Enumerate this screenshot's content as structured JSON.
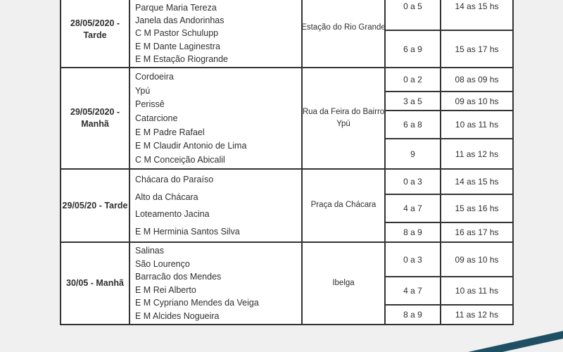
{
  "colors": {
    "page_background": "#f0f0f0",
    "table_background": "#ffffff",
    "border": "#333333",
    "text": "#2f2f2f",
    "ribbon": "#1e4f63"
  },
  "schedule_table": {
    "blocks": [
      {
        "date_lines": [
          "28/05/2020 -",
          "Tarde"
        ],
        "locations": [
          "Parque Maria Tereza",
          "Janela das Andorinhas",
          "C M Pastor Schulupp",
          "E M Dante Laginestra",
          "E M Estação Riogrande"
        ],
        "meeting_point_lines": [
          "Estação do Rio Grande"
        ],
        "slots": [
          {
            "ages": "0 a 5",
            "time": "14 as 15 hs"
          },
          {
            "ages": "6 a 9",
            "time": "15 as 17 hs"
          }
        ]
      },
      {
        "date_lines": [
          "29/05/2020 -",
          "Manhã"
        ],
        "locations": [
          "Cordoeira",
          "Ypú",
          "Perissê",
          "Catarcione",
          "E M Padre Rafael",
          "E M Claudir Antonio de Lima",
          "C M Conceição Abicalil"
        ],
        "meeting_point_lines": [
          "Rua da Feira do Bairro",
          "Ypú"
        ],
        "slots": [
          {
            "ages": "0 a 2",
            "time": "08 as 09 hs"
          },
          {
            "ages": "3 a 5",
            "time": "09 as 10 hs"
          },
          {
            "ages": "6 a 8",
            "time": "10 as 11 hs"
          },
          {
            "ages": "9",
            "time": "11 as 12 hs"
          }
        ]
      },
      {
        "date_lines": [
          "29/05/20 - Tarde"
        ],
        "locations": [
          "Chácara do Paraíso",
          "Alto da Chácara",
          "Loteamento Jacina",
          "E M Herminia Santos Silva"
        ],
        "meeting_point_lines": [
          "Praça da Chácara"
        ],
        "slots": [
          {
            "ages": "0 a 3",
            "time": "14 as 15 hs"
          },
          {
            "ages": "4 a 7",
            "time": "15 as 16 hs"
          },
          {
            "ages": "8 a 9",
            "time": "16 as 17 hs"
          }
        ]
      },
      {
        "date_lines": [
          "30/05 - Manhã"
        ],
        "locations": [
          "Salinas",
          "São Lourenço",
          "Barracão dos Mendes",
          "E M Rei Alberto",
          "E M Cypriano Mendes da Veiga",
          "E M Alcides Nogueira"
        ],
        "meeting_point_lines": [
          "Ibelga"
        ],
        "slots": [
          {
            "ages": "0 a 3",
            "time": "09 as 10 hs"
          },
          {
            "ages": "4 a 7",
            "time": "10 as 11 hs"
          },
          {
            "ages": "8 a 9",
            "time": "11 as 12 hs"
          }
        ]
      }
    ]
  }
}
